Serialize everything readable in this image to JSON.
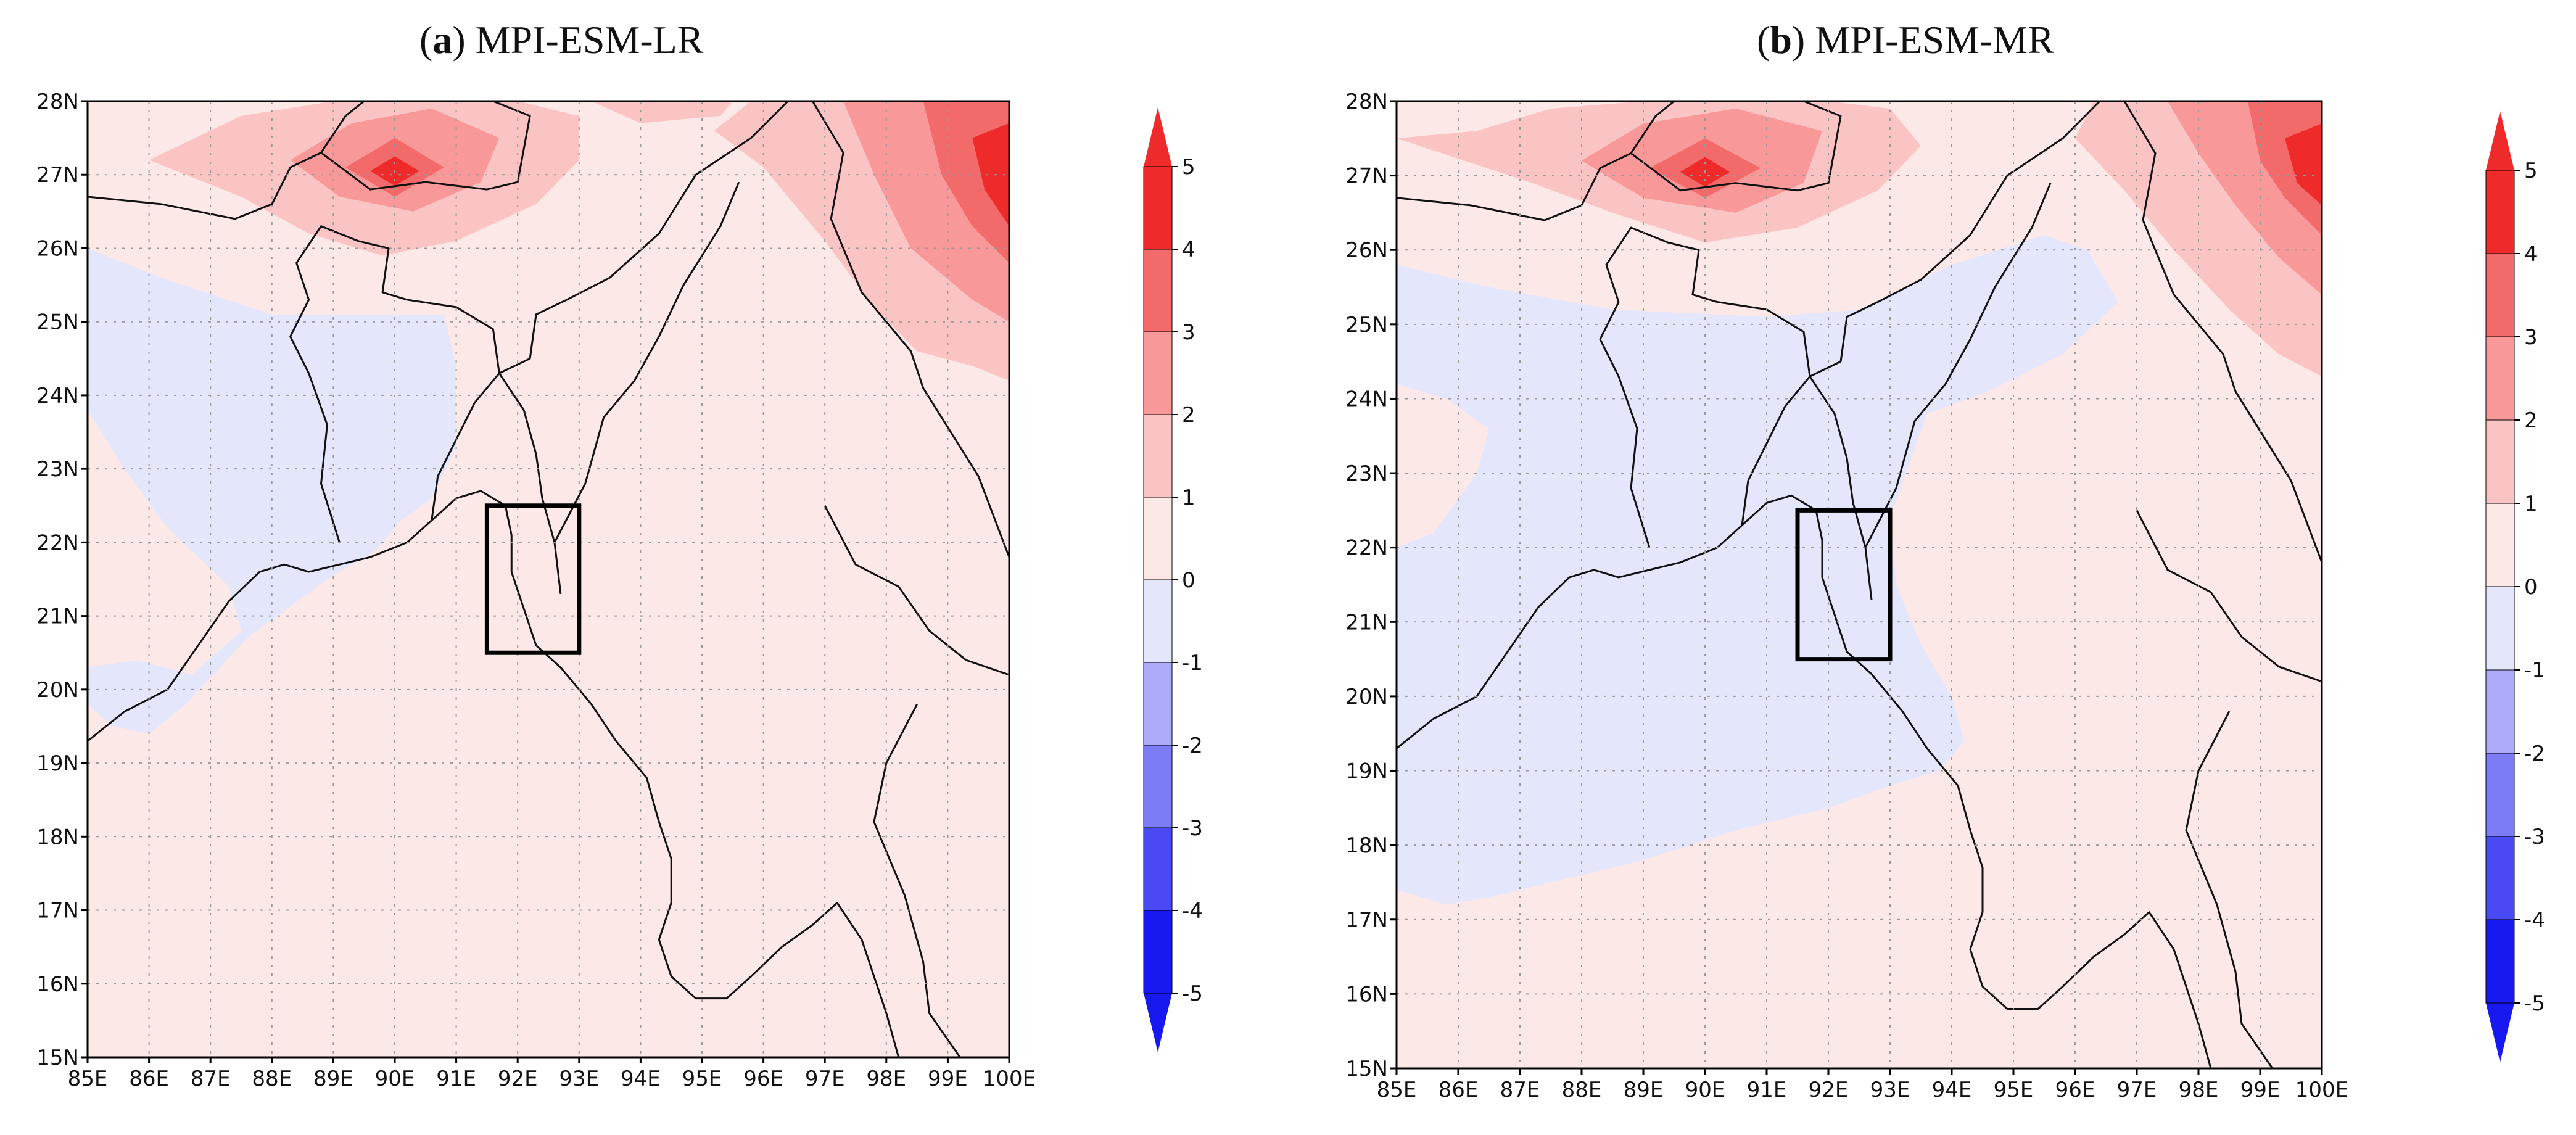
{
  "panels": [
    {
      "label": "a",
      "model": "MPI-ESM-LR",
      "lon_ticks": [
        "85E",
        "86E",
        "87E",
        "88E",
        "89E",
        "90E",
        "91E",
        "92E",
        "93E",
        "94E",
        "95E",
        "96E",
        "97E",
        "98E",
        "99E",
        "100E"
      ],
      "lat_ticks": [
        "15N",
        "16N",
        "17N",
        "18N",
        "19N",
        "20N",
        "21N",
        "22N",
        "23N",
        "24N",
        "25N",
        "26N",
        "27N",
        "28N"
      ],
      "colorbar_ticks": [
        "5",
        "4",
        "3",
        "2",
        "1",
        "0",
        "-1",
        "-2",
        "-3",
        "-4",
        "-5"
      ]
    },
    {
      "label": "b",
      "model": "MPI-ESM-MR",
      "lon_ticks": [
        "85E",
        "86E",
        "87E",
        "88E",
        "89E",
        "90E",
        "91E",
        "92E",
        "93E",
        "94E",
        "95E",
        "96E",
        "97E",
        "98E",
        "99E",
        "100E"
      ],
      "lat_ticks": [
        "15N",
        "16N",
        "17N",
        "18N",
        "19N",
        "20N",
        "21N",
        "22N",
        "23N",
        "24N",
        "25N",
        "26N",
        "27N",
        "28N"
      ],
      "colorbar_ticks": [
        "5",
        "4",
        "3",
        "2",
        "1",
        "0",
        "-1",
        "-2",
        "-3",
        "-4",
        "-5"
      ]
    }
  ],
  "map_extent": {
    "lon": [
      85,
      100
    ],
    "lat": [
      15,
      28
    ]
  },
  "study_box": {
    "lon": [
      91.5,
      93
    ],
    "lat": [
      20.5,
      22.5
    ]
  },
  "colors": {
    "neg5": "#1818f0",
    "neg4": "#4a4af5",
    "neg3": "#7c7cf7",
    "neg2": "#acacfa",
    "neg1": "#e4e6fc",
    "pos1": "#fde8e8",
    "pos2": "#fbc4c4",
    "pos3": "#f89898",
    "pos4": "#f26a6a",
    "pos5": "#ee2a2a",
    "grid": "#9a9a9a",
    "coast": "#111111"
  }
}
